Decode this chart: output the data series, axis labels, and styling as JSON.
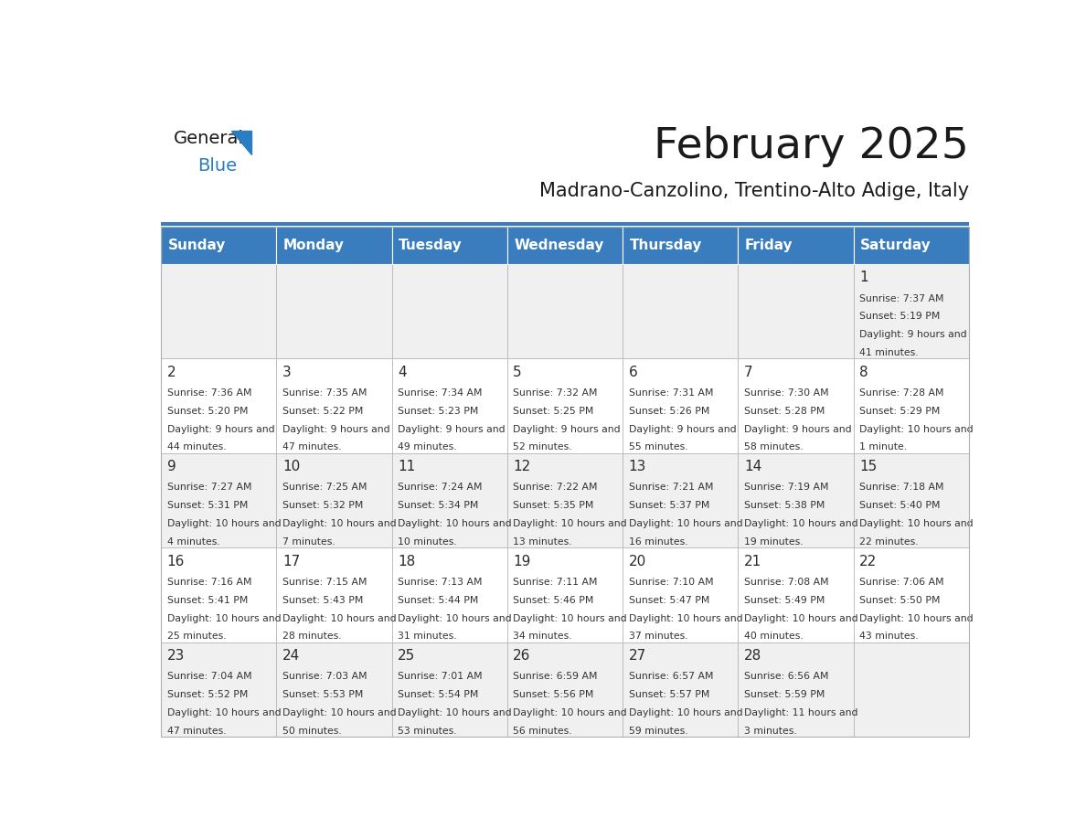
{
  "title": "February 2025",
  "subtitle": "Madrano-Canzolino, Trentino-Alto Adige, Italy",
  "header_bg": "#3a7dbf",
  "header_text": "#ffffff",
  "day_names": [
    "Sunday",
    "Monday",
    "Tuesday",
    "Wednesday",
    "Thursday",
    "Friday",
    "Saturday"
  ],
  "row_bg_odd": "#f0f0f0",
  "row_bg_even": "#ffffff",
  "cell_border": "#b0b0b0",
  "day_number_color": "#2a2a2a",
  "info_color": "#333333",
  "title_color": "#1a1a1a",
  "subtitle_color": "#1a1a1a",
  "logo_text_color": "#1a1a1a",
  "logo_blue_color": "#2a7dc0",
  "header_line_color": "#3a7dbf",
  "calendar_data": [
    [
      null,
      null,
      null,
      null,
      null,
      null,
      {
        "day": 1,
        "sunrise": "7:37 AM",
        "sunset": "5:19 PM",
        "daylight": "9 hours and 41 minutes."
      }
    ],
    [
      {
        "day": 2,
        "sunrise": "7:36 AM",
        "sunset": "5:20 PM",
        "daylight": "9 hours and 44 minutes."
      },
      {
        "day": 3,
        "sunrise": "7:35 AM",
        "sunset": "5:22 PM",
        "daylight": "9 hours and 47 minutes."
      },
      {
        "day": 4,
        "sunrise": "7:34 AM",
        "sunset": "5:23 PM",
        "daylight": "9 hours and 49 minutes."
      },
      {
        "day": 5,
        "sunrise": "7:32 AM",
        "sunset": "5:25 PM",
        "daylight": "9 hours and 52 minutes."
      },
      {
        "day": 6,
        "sunrise": "7:31 AM",
        "sunset": "5:26 PM",
        "daylight": "9 hours and 55 minutes."
      },
      {
        "day": 7,
        "sunrise": "7:30 AM",
        "sunset": "5:28 PM",
        "daylight": "9 hours and 58 minutes."
      },
      {
        "day": 8,
        "sunrise": "7:28 AM",
        "sunset": "5:29 PM",
        "daylight": "10 hours and 1 minute."
      }
    ],
    [
      {
        "day": 9,
        "sunrise": "7:27 AM",
        "sunset": "5:31 PM",
        "daylight": "10 hours and 4 minutes."
      },
      {
        "day": 10,
        "sunrise": "7:25 AM",
        "sunset": "5:32 PM",
        "daylight": "10 hours and 7 minutes."
      },
      {
        "day": 11,
        "sunrise": "7:24 AM",
        "sunset": "5:34 PM",
        "daylight": "10 hours and 10 minutes."
      },
      {
        "day": 12,
        "sunrise": "7:22 AM",
        "sunset": "5:35 PM",
        "daylight": "10 hours and 13 minutes."
      },
      {
        "day": 13,
        "sunrise": "7:21 AM",
        "sunset": "5:37 PM",
        "daylight": "10 hours and 16 minutes."
      },
      {
        "day": 14,
        "sunrise": "7:19 AM",
        "sunset": "5:38 PM",
        "daylight": "10 hours and 19 minutes."
      },
      {
        "day": 15,
        "sunrise": "7:18 AM",
        "sunset": "5:40 PM",
        "daylight": "10 hours and 22 minutes."
      }
    ],
    [
      {
        "day": 16,
        "sunrise": "7:16 AM",
        "sunset": "5:41 PM",
        "daylight": "10 hours and 25 minutes."
      },
      {
        "day": 17,
        "sunrise": "7:15 AM",
        "sunset": "5:43 PM",
        "daylight": "10 hours and 28 minutes."
      },
      {
        "day": 18,
        "sunrise": "7:13 AM",
        "sunset": "5:44 PM",
        "daylight": "10 hours and 31 minutes."
      },
      {
        "day": 19,
        "sunrise": "7:11 AM",
        "sunset": "5:46 PM",
        "daylight": "10 hours and 34 minutes."
      },
      {
        "day": 20,
        "sunrise": "7:10 AM",
        "sunset": "5:47 PM",
        "daylight": "10 hours and 37 minutes."
      },
      {
        "day": 21,
        "sunrise": "7:08 AM",
        "sunset": "5:49 PM",
        "daylight": "10 hours and 40 minutes."
      },
      {
        "day": 22,
        "sunrise": "7:06 AM",
        "sunset": "5:50 PM",
        "daylight": "10 hours and 43 minutes."
      }
    ],
    [
      {
        "day": 23,
        "sunrise": "7:04 AM",
        "sunset": "5:52 PM",
        "daylight": "10 hours and 47 minutes."
      },
      {
        "day": 24,
        "sunrise": "7:03 AM",
        "sunset": "5:53 PM",
        "daylight": "10 hours and 50 minutes."
      },
      {
        "day": 25,
        "sunrise": "7:01 AM",
        "sunset": "5:54 PM",
        "daylight": "10 hours and 53 minutes."
      },
      {
        "day": 26,
        "sunrise": "6:59 AM",
        "sunset": "5:56 PM",
        "daylight": "10 hours and 56 minutes."
      },
      {
        "day": 27,
        "sunrise": "6:57 AM",
        "sunset": "5:57 PM",
        "daylight": "10 hours and 59 minutes."
      },
      {
        "day": 28,
        "sunrise": "6:56 AM",
        "sunset": "5:59 PM",
        "daylight": "11 hours and 3 minutes."
      },
      null
    ]
  ]
}
